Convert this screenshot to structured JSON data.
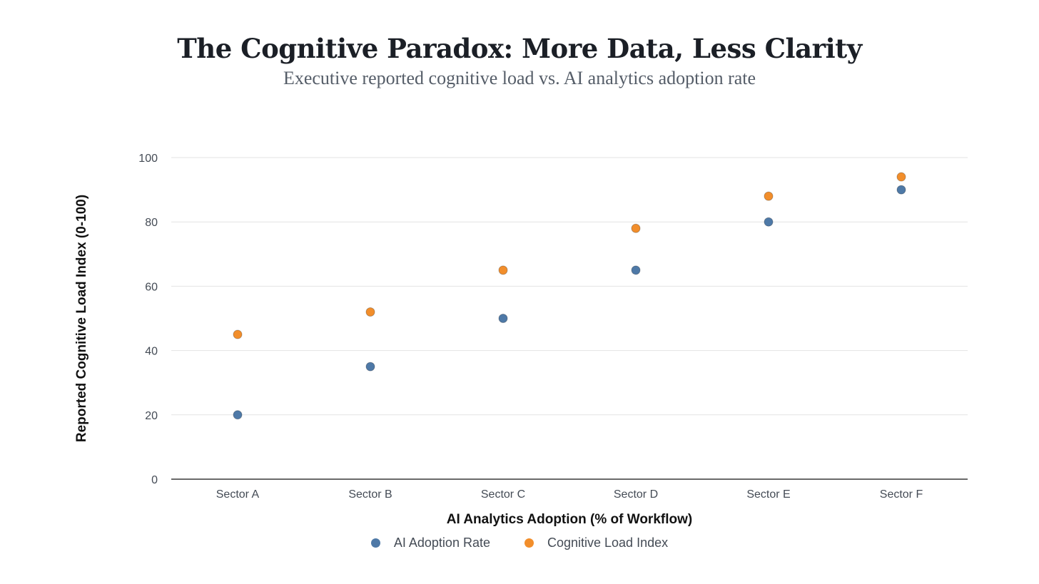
{
  "chart_data": {
    "type": "scatter",
    "title": "The Cognitive Paradox: More Data, Less Clarity",
    "subtitle": "Executive reported cognitive load vs. AI analytics adoption rate",
    "xlabel": "AI Analytics Adoption (% of Workflow)",
    "ylabel": "Reported Cognitive Load Index (0-100)",
    "categories": [
      "Sector A",
      "Sector B",
      "Sector C",
      "Sector D",
      "Sector E",
      "Sector F"
    ],
    "ylim": [
      0,
      100
    ],
    "yticks": [
      0,
      20,
      40,
      60,
      80,
      100
    ],
    "grid": true,
    "legend_position": "bottom",
    "series": [
      {
        "name": "AI Adoption Rate",
        "color": "#4e79a7",
        "values": [
          20,
          35,
          50,
          65,
          80,
          90
        ]
      },
      {
        "name": "Cognitive Load Index",
        "color": "#f28e2b",
        "values": [
          45,
          52,
          65,
          78,
          88,
          94
        ]
      }
    ]
  }
}
